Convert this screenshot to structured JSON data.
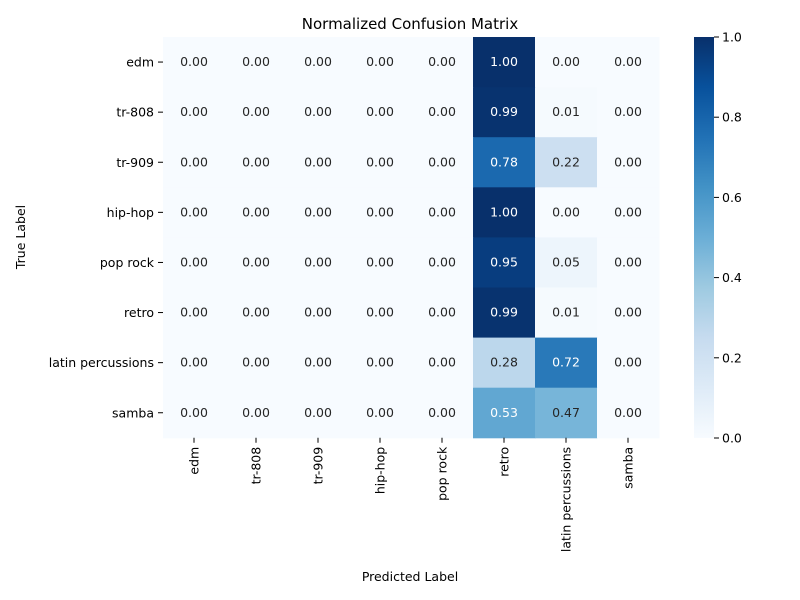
{
  "chart_data": {
    "type": "heatmap",
    "title": "Normalized Confusion Matrix",
    "xlabel": "Predicted Label",
    "ylabel": "True Label",
    "x_categories": [
      "edm",
      "tr-808",
      "tr-909",
      "hip-hop",
      "pop rock",
      "retro",
      "latin percussions",
      "samba"
    ],
    "y_categories": [
      "edm",
      "tr-808",
      "tr-909",
      "hip-hop",
      "pop rock",
      "retro",
      "latin percussions",
      "samba"
    ],
    "values": [
      [
        0.0,
        0.0,
        0.0,
        0.0,
        0.0,
        1.0,
        0.0,
        0.0
      ],
      [
        0.0,
        0.0,
        0.0,
        0.0,
        0.0,
        0.99,
        0.01,
        0.0
      ],
      [
        0.0,
        0.0,
        0.0,
        0.0,
        0.0,
        0.78,
        0.22,
        0.0
      ],
      [
        0.0,
        0.0,
        0.0,
        0.0,
        0.0,
        1.0,
        0.0,
        0.0
      ],
      [
        0.0,
        0.0,
        0.0,
        0.0,
        0.0,
        0.95,
        0.05,
        0.0
      ],
      [
        0.0,
        0.0,
        0.0,
        0.0,
        0.0,
        0.99,
        0.01,
        0.0
      ],
      [
        0.0,
        0.0,
        0.0,
        0.0,
        0.0,
        0.28,
        0.72,
        0.0
      ],
      [
        0.0,
        0.0,
        0.0,
        0.0,
        0.0,
        0.53,
        0.47,
        0.0
      ]
    ],
    "value_format": "2 decimals",
    "colorbar": {
      "colormap": "Blues",
      "range": [
        0.0,
        1.0
      ],
      "ticks": [
        "0.0",
        "0.2",
        "0.4",
        "0.6",
        "0.8",
        "1.0"
      ]
    }
  }
}
